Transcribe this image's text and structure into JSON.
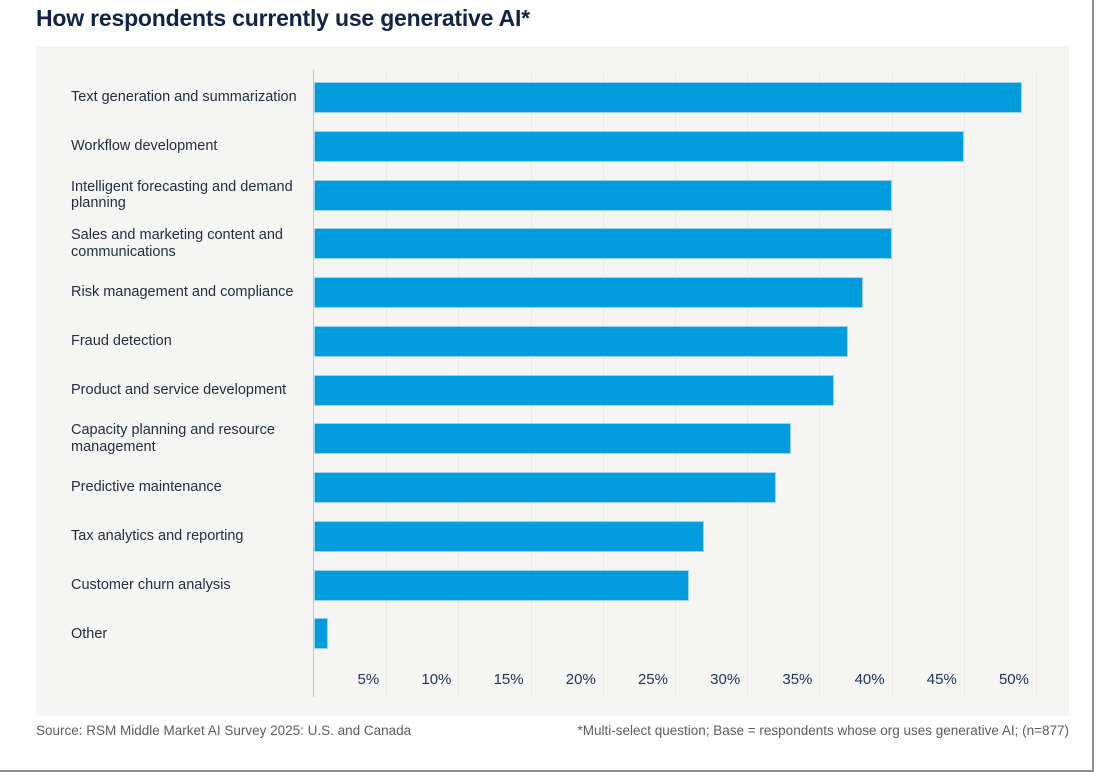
{
  "header": {
    "title": "How respondents currently use generative AI*"
  },
  "chart_data": {
    "type": "bar",
    "orientation": "horizontal",
    "title": "How respondents currently use generative AI*",
    "categories": [
      "Text generation and summarization",
      "Workflow development",
      "Intelligent forecasting and demand planning",
      "Sales and marketing content and communications",
      "Risk management and compliance",
      "Fraud detection",
      "Product and service development",
      "Capacity planning and resource management",
      "Predictive maintenance",
      "Tax analytics and reporting",
      "Customer churn analysis",
      "Other"
    ],
    "values": [
      49,
      45,
      40,
      40,
      38,
      37,
      36,
      33,
      32,
      27,
      26,
      1
    ],
    "unit": "%",
    "xlim": [
      0,
      50
    ],
    "x_tick_values": [
      5,
      10,
      15,
      20,
      25,
      30,
      35,
      40,
      45,
      50
    ],
    "x_ticks": [
      "5%",
      "10%",
      "15%",
      "20%",
      "25%",
      "30%",
      "35%",
      "40%",
      "45%",
      "50%"
    ],
    "grid": "vertical",
    "legend": "none",
    "bar_color": "#009CDE"
  },
  "footer": {
    "source": "Source: RSM Middle Market AI Survey 2025: U.S. and Canada",
    "note": "*Multi-select question; Base = respondents whose org uses generative AI; (n=877)"
  },
  "colors": {
    "bar": "#009CDE",
    "panel_background": "#f5f5f3",
    "gridline": "#e8e8e6",
    "title_text": "#13224a",
    "label_text": "#252e3f",
    "footer_text": "#5d5d5d"
  }
}
